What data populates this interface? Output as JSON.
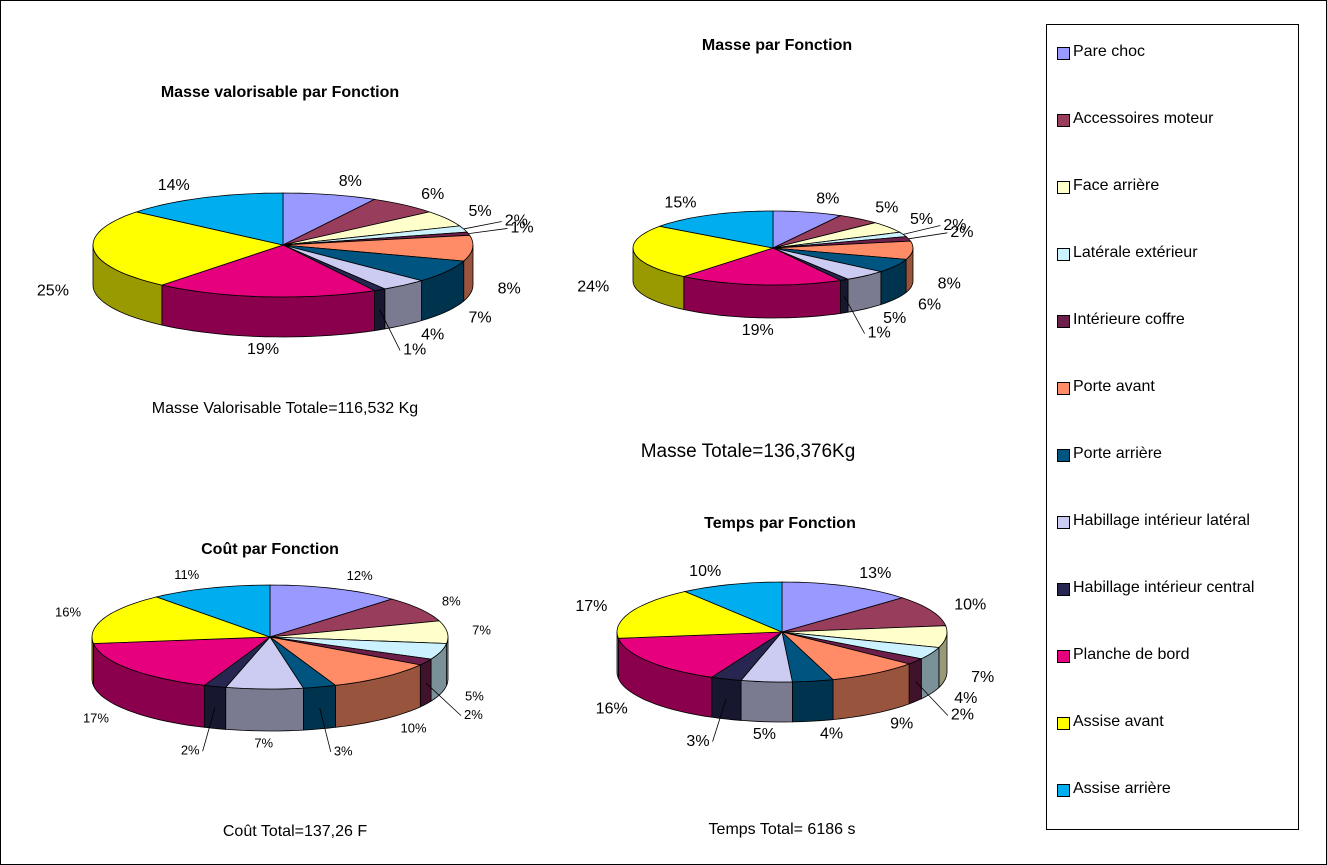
{
  "legend": {
    "categories": [
      "Pare choc",
      "Accessoires moteur",
      "Face arrière",
      "Latérale extérieur",
      "Intérieure coffre",
      "Porte avant",
      "Porte arrière",
      "Habillage intérieur latéral",
      "Habillage intérieur central",
      "Planche de bord",
      "Assise avant",
      "Assise arrière"
    ],
    "colors": [
      "#9999ff",
      "#993d5c",
      "#ffffcc",
      "#ccf2ff",
      "#6b1f4a",
      "#ff8c66",
      "#005580",
      "#ccccf2",
      "#262650",
      "#e6007e",
      "#ffff00",
      "#00aeef"
    ]
  },
  "chart_data": [
    {
      "type": "pie",
      "title": "Masse valorisable par Fonction",
      "note": "Masse Valorisable Totale=116,532 Kg",
      "values": [
        8,
        6,
        5,
        2,
        1,
        8,
        7,
        4,
        1,
        19,
        25,
        14
      ],
      "value_labels": [
        "8%",
        "6%",
        "5%",
        "2%",
        "1%",
        "8%",
        "7%",
        "4%",
        "1%",
        "19%",
        "25%",
        "14%"
      ]
    },
    {
      "type": "pie",
      "title": "Masse par Fonction",
      "note": "Masse Totale=136,376Kg",
      "values": [
        8,
        5,
        5,
        2,
        2,
        8,
        6,
        5,
        1,
        19,
        24,
        15
      ],
      "value_labels": [
        "8%",
        "5%",
        "5%",
        "2%",
        "2%",
        "8%",
        "6%",
        "5%",
        "1%",
        "19%",
        "24%",
        "15%"
      ]
    },
    {
      "type": "pie",
      "title": "Coût par Fonction",
      "note": "Coût Total=137,26 F",
      "values": [
        12,
        8,
        7,
        5,
        2,
        10,
        3,
        7,
        2,
        17,
        16,
        11
      ],
      "value_labels": [
        "12%",
        "8%",
        "7%",
        "5%",
        "2%",
        "10%",
        "3%",
        "7%",
        "2%",
        "17%",
        "16%",
        "11%"
      ]
    },
    {
      "type": "pie",
      "title": "Temps par Fonction",
      "note": "Temps Total= 6186 s",
      "values": [
        13,
        10,
        7,
        4,
        2,
        9,
        4,
        5,
        3,
        16,
        17,
        10
      ],
      "value_labels": [
        "13%",
        "10%",
        "7%",
        "4%",
        "2%",
        "9%",
        "4%",
        "5%",
        "3%",
        "16%",
        "17%",
        "10%"
      ]
    }
  ]
}
